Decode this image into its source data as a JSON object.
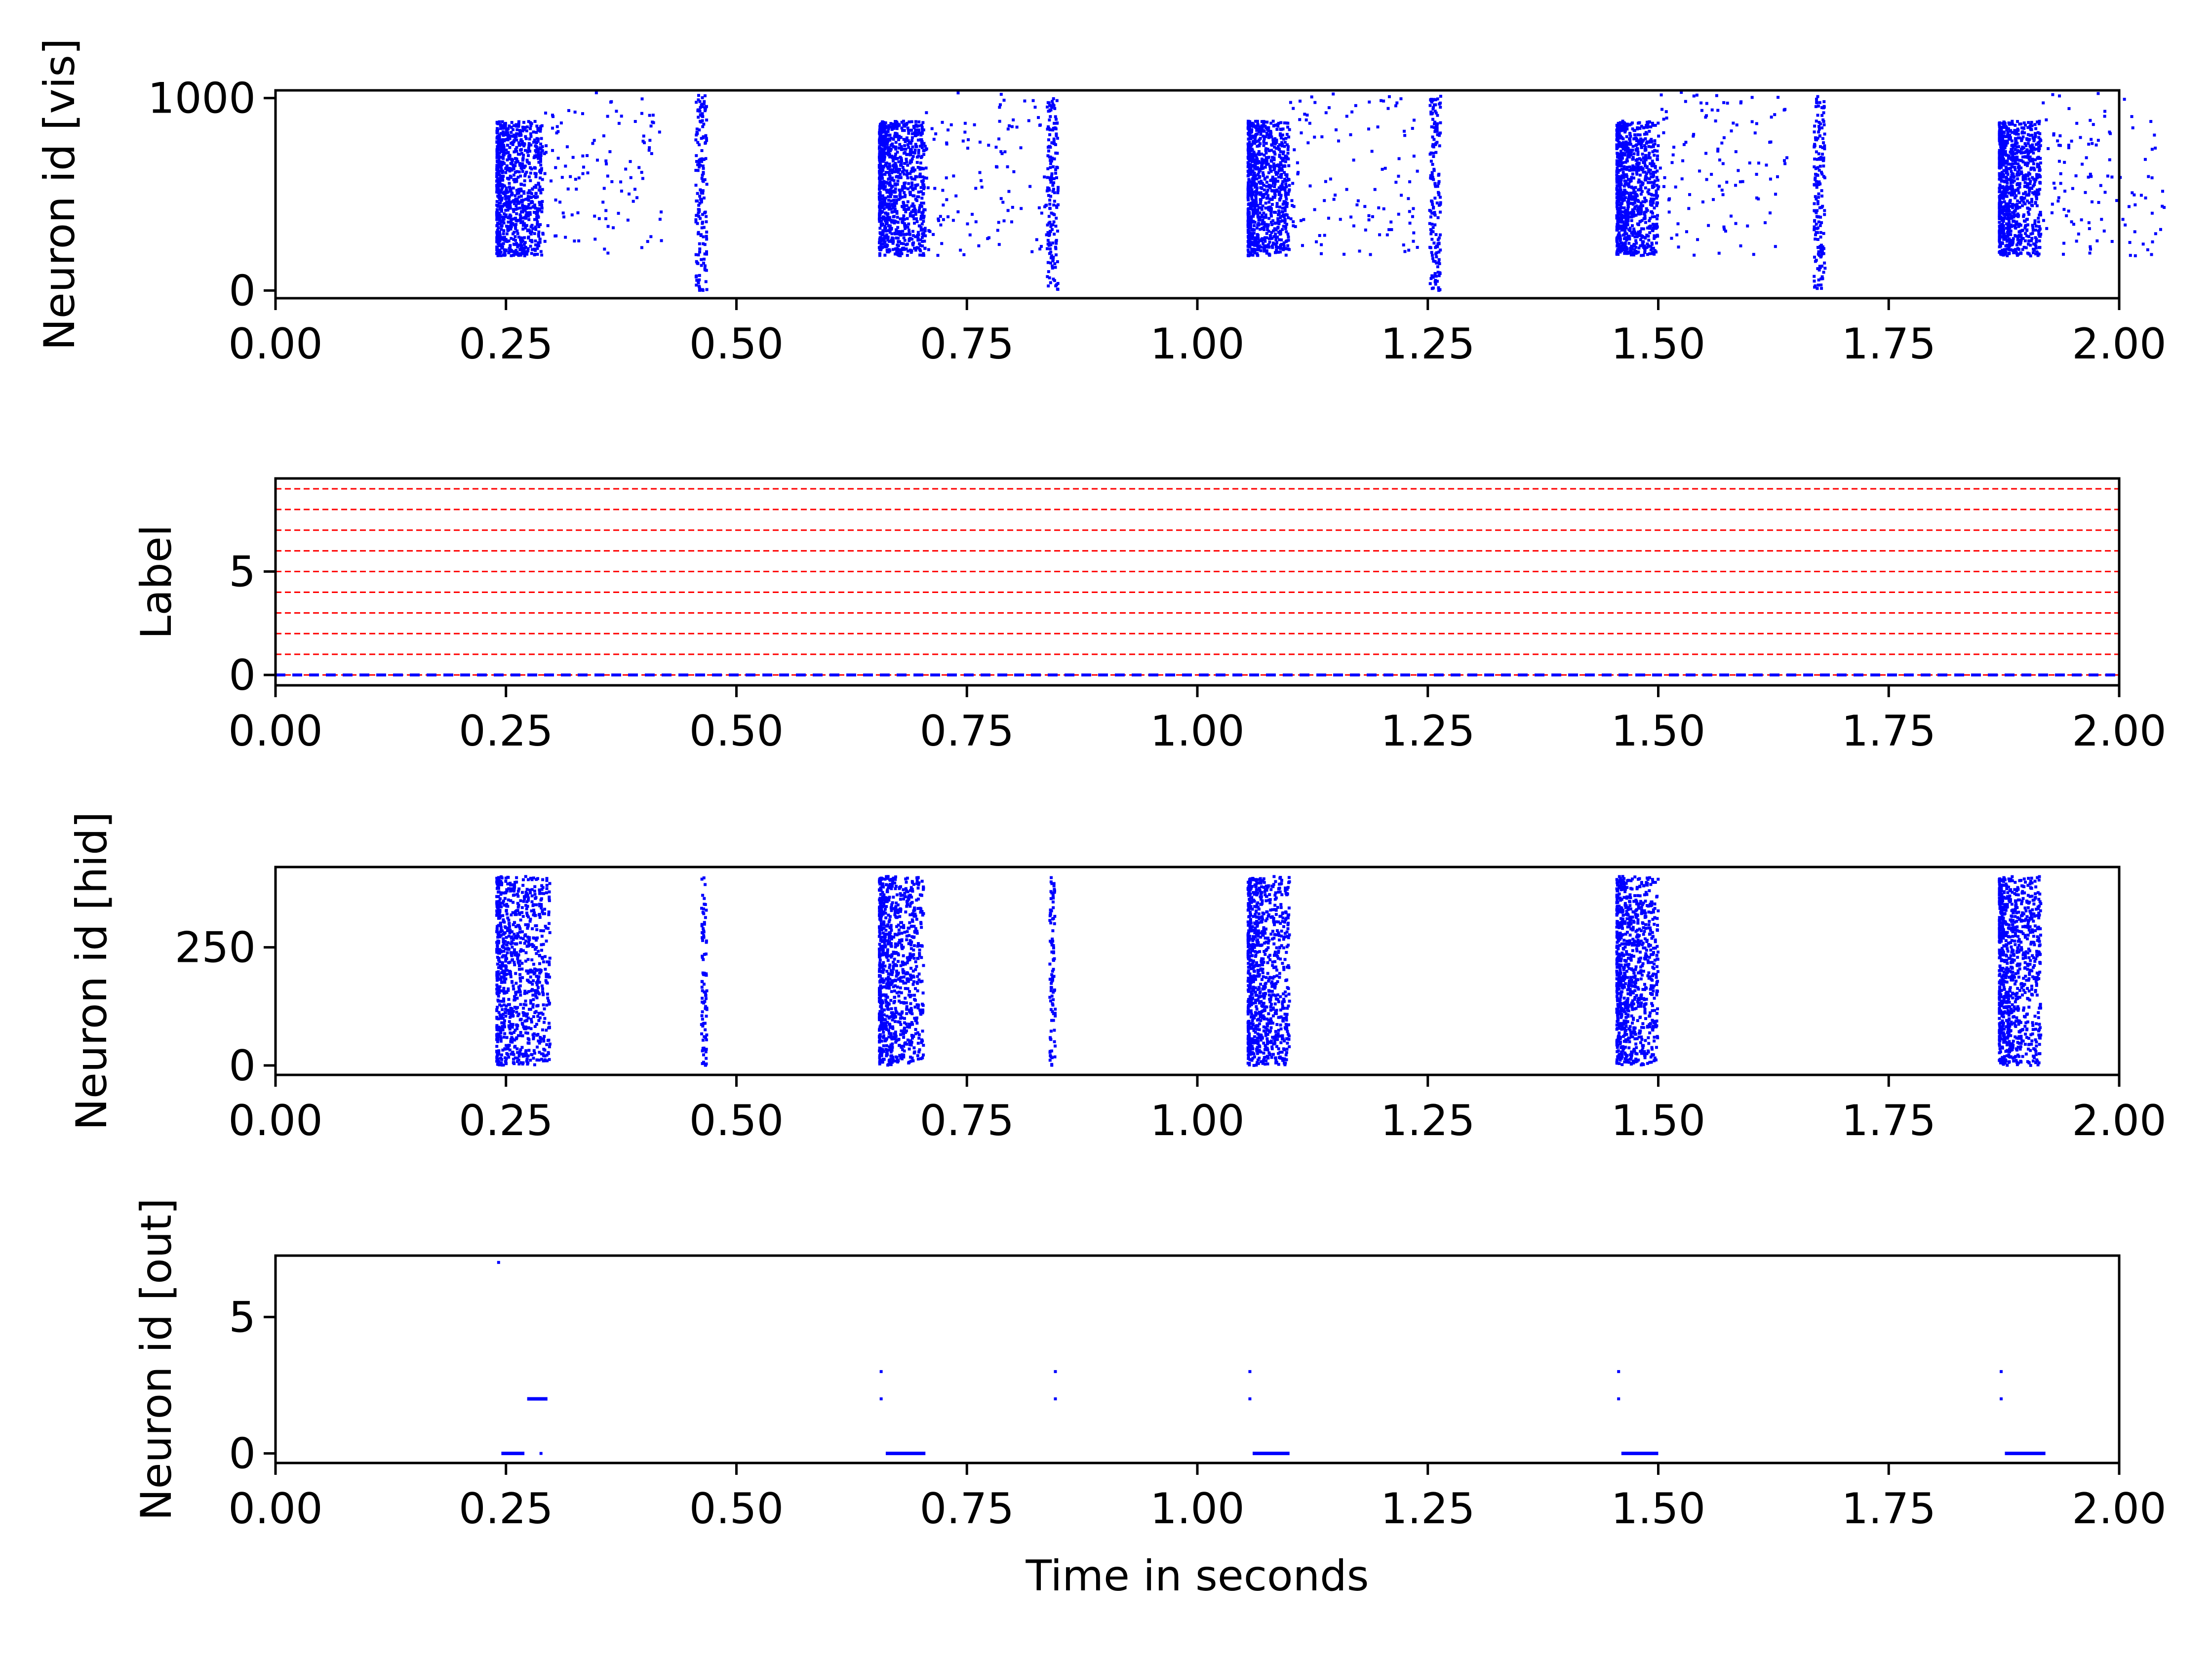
{
  "chart_data": [
    {
      "type": "scatter",
      "ylabel": "Neuron id [vis]",
      "xlim": [
        0,
        2
      ],
      "ylim": [
        -40,
        1040
      ],
      "yticks": [
        0,
        1000
      ],
      "xticks": [
        "0.00",
        "0.25",
        "0.50",
        "0.75",
        "1.00",
        "1.25",
        "1.50",
        "1.75",
        "2.00"
      ],
      "marker_color": "#0000ff",
      "bursts": [
        {
          "t_start": 0.24,
          "t_end": 0.29,
          "id_min": 180,
          "id_max": 880,
          "decay_end": 0.32
        },
        {
          "t_start": 0.655,
          "t_end": 0.705,
          "id_min": 180,
          "id_max": 880,
          "decay_end": 0.74
        },
        {
          "t_start": 1.055,
          "t_end": 1.1,
          "id_min": 180,
          "id_max": 880,
          "decay_end": 1.14
        },
        {
          "t_start": 1.455,
          "t_end": 1.5,
          "id_min": 180,
          "id_max": 880,
          "decay_end": 1.54
        },
        {
          "t_start": 1.87,
          "t_end": 1.915,
          "id_min": 180,
          "id_max": 880,
          "decay_end": 1.95
        }
      ],
      "vertical_bands": [
        {
          "t": 0.462,
          "id_min": 0,
          "id_max": 1020
        },
        {
          "t": 0.843,
          "id_min": 0,
          "id_max": 1020
        },
        {
          "t": 1.258,
          "id_min": 0,
          "id_max": 1020
        },
        {
          "t": 1.675,
          "id_min": 0,
          "id_max": 1020
        }
      ]
    },
    {
      "type": "line",
      "ylabel": "Label",
      "xlim": [
        0,
        2
      ],
      "ylim": [
        -0.5,
        9.5
      ],
      "yticks": [
        0,
        5
      ],
      "xticks": [
        "0.00",
        "0.25",
        "0.50",
        "0.75",
        "1.00",
        "1.25",
        "1.50",
        "1.75",
        "2.00"
      ],
      "label_lines": [
        0,
        1,
        2,
        3,
        4,
        5,
        6,
        7,
        8,
        9
      ],
      "label_line_color": "#ff0000",
      "label_value": 0,
      "label_value_color": "#0000ff"
    },
    {
      "type": "scatter",
      "ylabel": "Neuron id [hid]",
      "xlim": [
        0,
        2
      ],
      "ylim": [
        -20,
        420
      ],
      "yticks": [
        0,
        250
      ],
      "xticks": [
        "0.00",
        "0.25",
        "0.50",
        "0.75",
        "1.00",
        "1.25",
        "1.50",
        "1.75",
        "2.00"
      ],
      "marker_color": "#0000ff",
      "bursts": [
        {
          "t_start": 0.24,
          "t_end": 0.298,
          "id_min": 0,
          "id_max": 400
        },
        {
          "t_start": 0.655,
          "t_end": 0.703,
          "id_min": 0,
          "id_max": 400
        },
        {
          "t_start": 1.055,
          "t_end": 1.1,
          "id_min": 0,
          "id_max": 400
        },
        {
          "t_start": 1.455,
          "t_end": 1.5,
          "id_min": 0,
          "id_max": 400
        },
        {
          "t_start": 1.87,
          "t_end": 1.915,
          "id_min": 0,
          "id_max": 400
        }
      ],
      "thin_bands": [
        {
          "t": 0.465,
          "id_min": 0,
          "id_max": 400
        },
        {
          "t": 0.843,
          "id_min": 0,
          "id_max": 400
        }
      ]
    },
    {
      "type": "scatter",
      "ylabel": "Neuron id [out]",
      "xlabel": "Time in seconds",
      "xlim": [
        0,
        2
      ],
      "ylim": [
        -0.35,
        7.25
      ],
      "yticks": [
        0,
        5
      ],
      "xticks": [
        "0.00",
        "0.25",
        "0.50",
        "0.75",
        "1.00",
        "1.25",
        "1.50",
        "1.75",
        "2.00"
      ],
      "marker_color": "#0000ff",
      "spike_runs": [
        {
          "neuron": 0,
          "t_start": 0.245,
          "t_end": 0.27
        },
        {
          "neuron": 2,
          "t_start": 0.273,
          "t_end": 0.295
        },
        {
          "neuron": 0,
          "t_start": 0.662,
          "t_end": 0.705
        },
        {
          "neuron": 0,
          "t_start": 1.06,
          "t_end": 1.1
        },
        {
          "neuron": 0,
          "t_start": 1.46,
          "t_end": 1.5
        },
        {
          "neuron": 0,
          "t_start": 1.876,
          "t_end": 1.92
        }
      ],
      "single_spikes": [
        {
          "neuron": 7,
          "t": 0.242
        },
        {
          "neuron": 0,
          "t": 0.288
        },
        {
          "neuron": 3,
          "t": 0.657
        },
        {
          "neuron": 2,
          "t": 0.657
        },
        {
          "neuron": 3,
          "t": 0.846
        },
        {
          "neuron": 2,
          "t": 0.846
        },
        {
          "neuron": 3,
          "t": 1.057
        },
        {
          "neuron": 2,
          "t": 1.057
        },
        {
          "neuron": 3,
          "t": 1.457
        },
        {
          "neuron": 2,
          "t": 1.457
        },
        {
          "neuron": 3,
          "t": 1.872
        },
        {
          "neuron": 2,
          "t": 1.872
        }
      ]
    }
  ]
}
